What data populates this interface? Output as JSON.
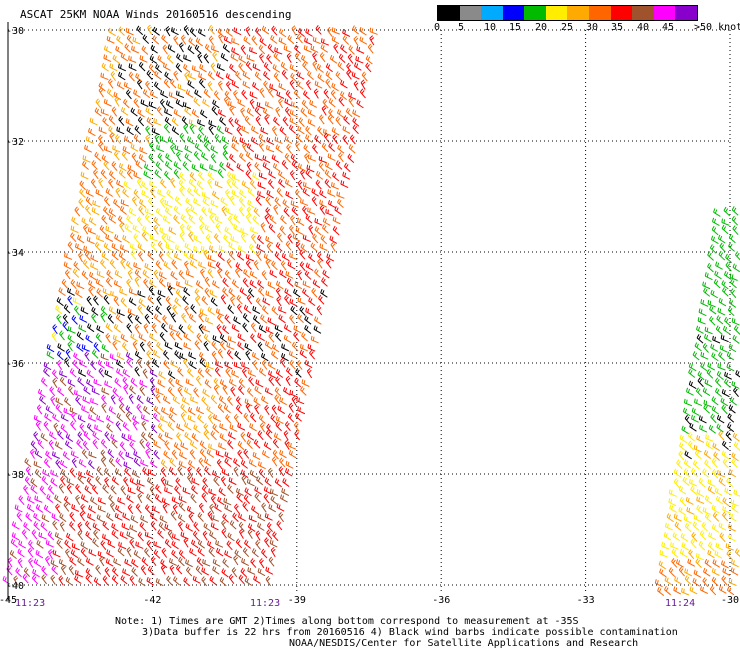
{
  "title": "ASCAT 25KM NOAA Winds 20160516 descending",
  "legend": {
    "ticks": [
      "0",
      "5",
      "10",
      "15",
      "20",
      "25",
      "30",
      "35",
      "40",
      "45",
      ">50 knots"
    ],
    "colors": [
      "#000000",
      "#8a8a8a",
      "#00aaff",
      "#0000ff",
      "#00bb00",
      "#ffee00",
      "#ffaa00",
      "#ff6600",
      "#ff0000",
      "#a0522d",
      "#ff00ff",
      "#8800cc"
    ]
  },
  "lat_labels": [
    "-30",
    "-32",
    "-34",
    "-36",
    "-38",
    "-40"
  ],
  "lon_labels": [
    "-45",
    "-42",
    "-39",
    "-36",
    "-33",
    "-30"
  ],
  "time_labels": [
    "11:23",
    "11:23",
    "11:24"
  ],
  "notes": [
    "Note: 1) Times are GMT 2)Times along bottom correspond to measurement at -35S",
    "3)Data buffer is 22 hrs from 20160516 4) Black wind barbs indicate possible contamination",
    "NOAA/NESDIS/Center for Satellite Applications and Research"
  ],
  "map_data": {
    "grid_lat": [
      -30,
      -32,
      -34,
      -36,
      -38,
      -40
    ],
    "grid_lon": [
      -45,
      -42,
      -39,
      -36,
      -33,
      -30
    ]
  }
}
